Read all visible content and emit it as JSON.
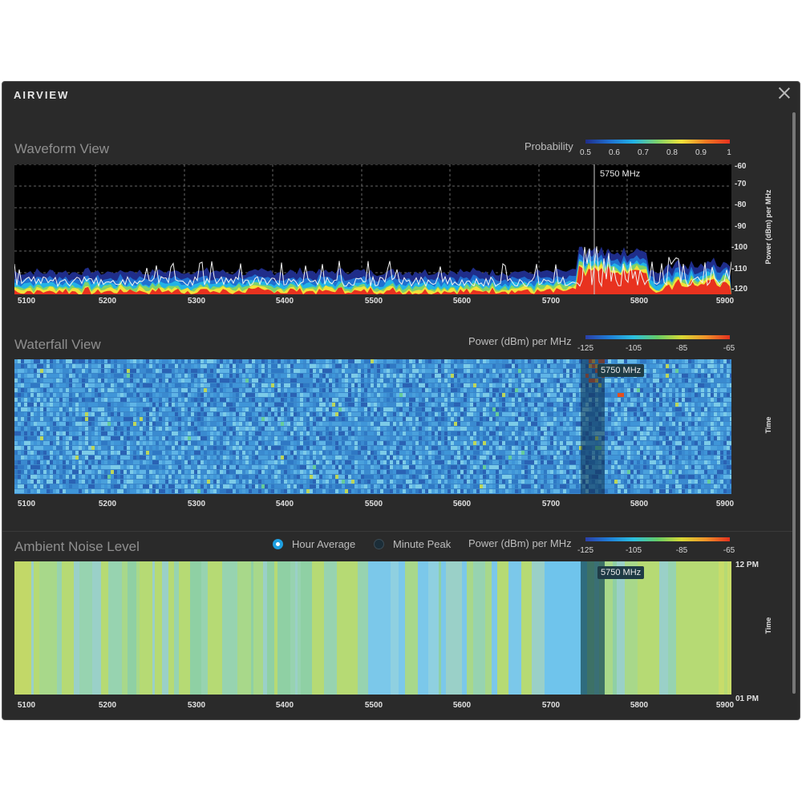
{
  "window": {
    "title": "AIRVIEW"
  },
  "waveform": {
    "title": "Waveform View",
    "legend_label": "Probability",
    "legend_ticks": [
      "0.5",
      "0.6",
      "0.7",
      "0.8",
      "0.9",
      "1"
    ],
    "y_axis_label": "Power (dBm) per MHz",
    "y_ticks": [
      "-60",
      "-70",
      "-80",
      "-90",
      "-100",
      "-110",
      "-120"
    ],
    "marker_label": "5750 MHz"
  },
  "waterfall": {
    "title": "Waterfall View",
    "legend_label": "Power (dBm) per MHz",
    "legend_ticks": [
      "-125",
      "-105",
      "-85",
      "-65"
    ],
    "y_axis_label": "Time",
    "marker_label": "5750 MHz"
  },
  "ambient": {
    "title": "Ambient Noise Level",
    "legend_label": "Power (dBm) per MHz",
    "legend_ticks": [
      "-125",
      "-105",
      "-85",
      "-65"
    ],
    "radio_hour": "Hour Average",
    "radio_minute": "Minute Peak",
    "selected": "Hour Average",
    "y_axis_label": "Time",
    "y_top": "12 PM",
    "y_bottom": "01 PM",
    "marker_label": "5750 MHz"
  },
  "x_ticks": [
    "5100",
    "5200",
    "5300",
    "5400",
    "5500",
    "5600",
    "5700",
    "5800",
    "5900"
  ],
  "colors": {
    "panel_bg": "#2a2a2a",
    "accent": "#1e9fe0",
    "spectrum_gradient": [
      "#1f2d8a",
      "#1f6fd0",
      "#22b3e6",
      "#7fd36a",
      "#f2e23a",
      "#f07a23",
      "#e8321f"
    ]
  }
}
